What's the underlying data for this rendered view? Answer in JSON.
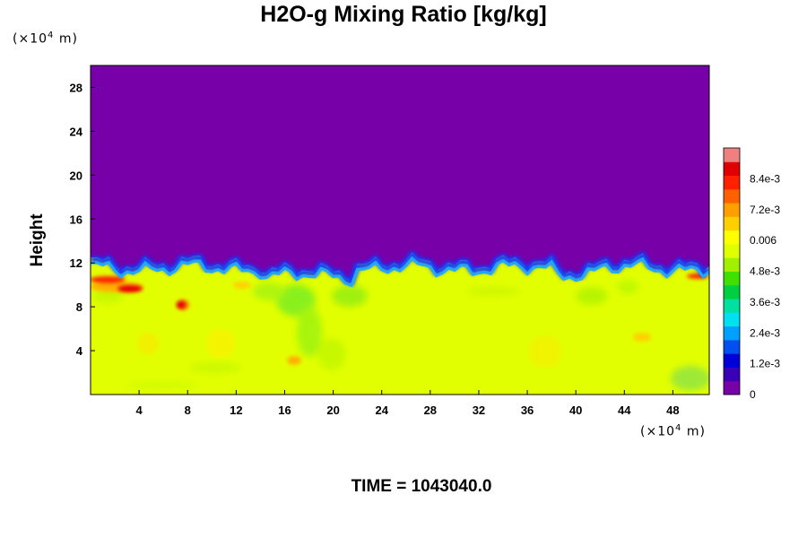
{
  "chart_data": {
    "type": "heatmap",
    "title": "H2O-g Mixing Ratio [kg/kg]",
    "ylabel": "Height",
    "x_unit": {
      "prefix": "(×10",
      "exp": "4",
      "suffix": " m)"
    },
    "y_unit": {
      "prefix": "(×10",
      "exp": "4",
      "suffix": " m)"
    },
    "x_ticks": [
      "4",
      "8",
      "12",
      "16",
      "20",
      "24",
      "28",
      "32",
      "36",
      "40",
      "44",
      "48"
    ],
    "y_ticks": [
      "4",
      "8",
      "12",
      "16",
      "20",
      "24",
      "28"
    ],
    "xlim": [
      0,
      51
    ],
    "ylim": [
      0,
      30
    ],
    "colorbar": {
      "ticks": [
        "0",
        "1.2e-3",
        "2.4e-3",
        "3.6e-3",
        "4.8e-3",
        "0.006",
        "7.2e-3",
        "8.4e-3"
      ],
      "range": [
        0,
        0.0096
      ],
      "colors": [
        "#7800a8",
        "#3a00b8",
        "#0000d8",
        "#0050f0",
        "#00a0ff",
        "#00e0f0",
        "#00e0a0",
        "#00d040",
        "#40e000",
        "#a0f000",
        "#e0ff00",
        "#ffff00",
        "#ffd000",
        "#ffa000",
        "#ff6000",
        "#ff2000",
        "#e00000",
        "#f08080"
      ]
    },
    "fields": {
      "dry_layer": {
        "value": 0,
        "y_from": 12.2,
        "y_to": 30
      },
      "moist_layer": {
        "value": 0.0068,
        "y_from": 0,
        "y_to": 10.5
      },
      "interface_height": 12.0
    },
    "time_label": "TIME = 1043040.0"
  }
}
